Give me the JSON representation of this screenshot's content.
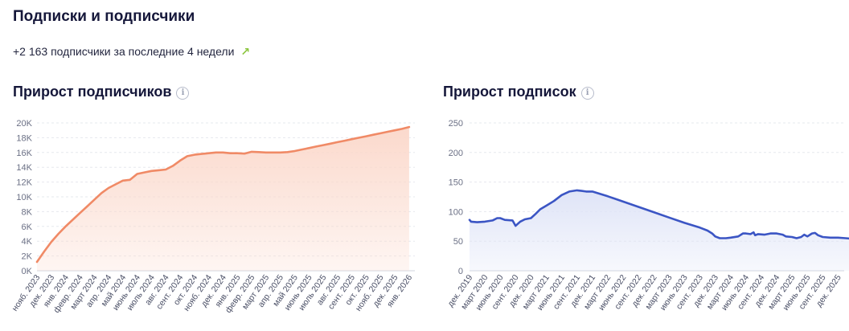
{
  "header": {
    "title": "Подписки и подписчики",
    "summary": "+2 163 подписчики за последние 4 недели",
    "summary_icon": "arrow-up-right-icon"
  },
  "chart_data": [
    {
      "type": "area",
      "title": "Прирост подписчиков",
      "color": "#f08a66",
      "fill": "#fbd9cc",
      "ylim": [
        0,
        20000
      ],
      "yticks": [
        0,
        2000,
        4000,
        6000,
        8000,
        10000,
        12000,
        14000,
        16000,
        18000,
        20000
      ],
      "ytick_labels": [
        "0K",
        "2K",
        "4K",
        "6K",
        "8K",
        "10K",
        "12K",
        "14K",
        "16K",
        "18K",
        "20K"
      ],
      "categories": [
        "нояб. 2023",
        "дек. 2023",
        "янв. 2024",
        "февр. 2024",
        "март 2024",
        "апр. 2024",
        "май 2024",
        "июнь 2024",
        "июль 2024",
        "авг. 2024",
        "сент. 2024",
        "окт. 2024",
        "нояб. 2024",
        "дек. 2024",
        "янв. 2025",
        "февр. 2025",
        "март 2025",
        "апр. 2025",
        "май 2025",
        "июнь 2025",
        "июль 2025",
        "авг. 2025",
        "сент. 2025",
        "окт. 2025",
        "нояб. 2025",
        "дек. 2025",
        "янв. 2026"
      ],
      "points": [
        [
          0,
          1200
        ],
        [
          0.5,
          2600
        ],
        [
          1,
          3900
        ],
        [
          1.5,
          5000
        ],
        [
          2,
          6000
        ],
        [
          2.5,
          6900
        ],
        [
          3,
          7800
        ],
        [
          3.5,
          8700
        ],
        [
          4,
          9600
        ],
        [
          4.5,
          10500
        ],
        [
          5,
          11200
        ],
        [
          5.5,
          11700
        ],
        [
          6,
          12200
        ],
        [
          6.5,
          12300
        ],
        [
          7,
          13100
        ],
        [
          7.5,
          13300
        ],
        [
          8,
          13500
        ],
        [
          8.5,
          13600
        ],
        [
          9,
          13700
        ],
        [
          9.5,
          14200
        ],
        [
          10,
          14900
        ],
        [
          10.5,
          15500
        ],
        [
          11,
          15700
        ],
        [
          11.5,
          15800
        ],
        [
          12,
          15900
        ],
        [
          12.5,
          16000
        ],
        [
          13,
          16000
        ],
        [
          13.5,
          15900
        ],
        [
          14,
          15900
        ],
        [
          14.5,
          15850
        ],
        [
          15,
          16100
        ],
        [
          15.5,
          16050
        ],
        [
          16,
          16000
        ],
        [
          16.5,
          16000
        ],
        [
          17,
          16000
        ],
        [
          17.5,
          16050
        ],
        [
          18,
          16200
        ],
        [
          18.5,
          16400
        ],
        [
          19,
          16600
        ],
        [
          19.5,
          16800
        ],
        [
          20,
          17000
        ],
        [
          20.5,
          17200
        ],
        [
          21,
          17400
        ],
        [
          21.5,
          17600
        ],
        [
          22,
          17800
        ],
        [
          22.5,
          18000
        ],
        [
          23,
          18200
        ],
        [
          23.5,
          18400
        ],
        [
          24,
          18600
        ],
        [
          24.5,
          18800
        ],
        [
          25,
          19000
        ],
        [
          25.5,
          19200
        ],
        [
          26,
          19450
        ]
      ]
    },
    {
      "type": "area",
      "title": "Прирост подписок",
      "color": "#3b55c4",
      "fill": "#dfe4f7",
      "ylim": [
        0,
        250
      ],
      "yticks": [
        0,
        50,
        100,
        150,
        200,
        250
      ],
      "ytick_labels": [
        "0",
        "50",
        "100",
        "150",
        "200",
        "250"
      ],
      "categories": [
        "дек. 2019",
        "март 2020",
        "июнь 2020",
        "сент. 2020",
        "дек. 2020",
        "март 2021",
        "июнь 2021",
        "сент. 2021",
        "дек. 2021",
        "март 2022",
        "июнь 2022",
        "сент. 2022",
        "дек. 2022",
        "март 2023",
        "июнь 2023",
        "сент. 2023",
        "дек. 2023",
        "март 2024",
        "июнь 2024",
        "сент. 2024",
        "дек. 2024",
        "март 2025",
        "июнь 2025",
        "сент. 2025",
        "дек. 2025"
      ],
      "points": [
        [
          0,
          86
        ],
        [
          0.1,
          83
        ],
        [
          0.5,
          82
        ],
        [
          1,
          83
        ],
        [
          1.5,
          85
        ],
        [
          1.8,
          89
        ],
        [
          2,
          89
        ],
        [
          2.3,
          86
        ],
        [
          2.8,
          85
        ],
        [
          3,
          76
        ],
        [
          3.3,
          83
        ],
        [
          3.6,
          87
        ],
        [
          4,
          89
        ],
        [
          4.3,
          96
        ],
        [
          4.6,
          104
        ],
        [
          5,
          110
        ],
        [
          5.5,
          118
        ],
        [
          6,
          128
        ],
        [
          6.5,
          134
        ],
        [
          7,
          136
        ],
        [
          7.3,
          135
        ],
        [
          7.6,
          134
        ],
        [
          8,
          134
        ],
        [
          9,
          126
        ],
        [
          10,
          117
        ],
        [
          11,
          108
        ],
        [
          12,
          99
        ],
        [
          13,
          90
        ],
        [
          14,
          81
        ],
        [
          15,
          73
        ],
        [
          15.5,
          68
        ],
        [
          15.8,
          63
        ],
        [
          16,
          58
        ],
        [
          16.3,
          55
        ],
        [
          16.7,
          55
        ],
        [
          17,
          56
        ],
        [
          17.5,
          58
        ],
        [
          17.8,
          63
        ],
        [
          18,
          63
        ],
        [
          18.3,
          62
        ],
        [
          18.5,
          65
        ],
        [
          18.6,
          60
        ],
        [
          18.8,
          62
        ],
        [
          19.2,
          61
        ],
        [
          19.6,
          63
        ],
        [
          20,
          63
        ],
        [
          20.4,
          61
        ],
        [
          20.6,
          58
        ],
        [
          21,
          57
        ],
        [
          21.3,
          55
        ],
        [
          21.6,
          57
        ],
        [
          21.8,
          61
        ],
        [
          22,
          58
        ],
        [
          22.3,
          63
        ],
        [
          22.5,
          64
        ],
        [
          22.7,
          60
        ],
        [
          23,
          57
        ],
        [
          23.5,
          56
        ],
        [
          24,
          56
        ],
        [
          24.5,
          55
        ],
        [
          25,
          54
        ],
        [
          25.4,
          53.5
        ]
      ]
    }
  ]
}
